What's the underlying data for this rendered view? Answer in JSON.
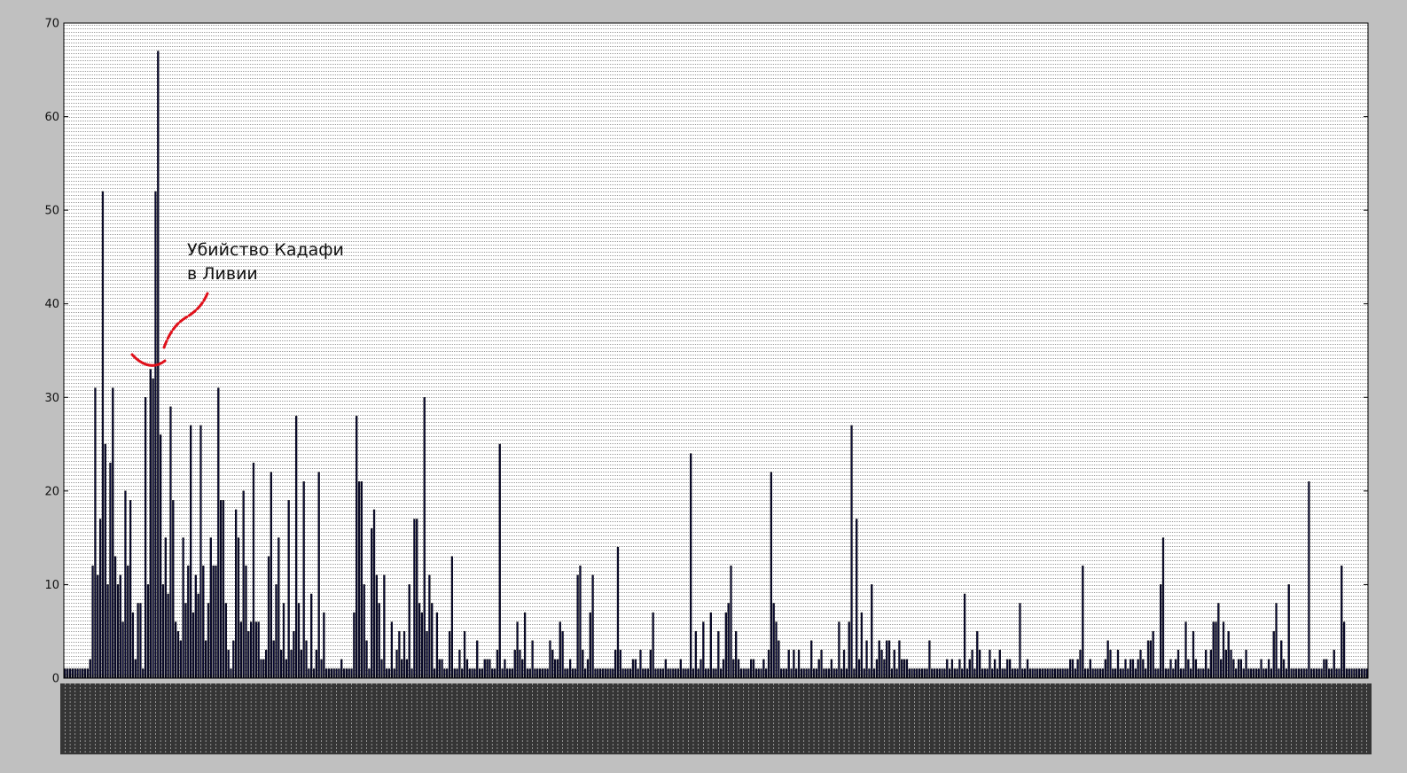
{
  "chart_data": {
    "type": "bar",
    "title": "",
    "xlabel": "",
    "ylabel": "",
    "ylim": [
      0,
      70
    ],
    "y_ticks": [
      "0",
      "10",
      "20",
      "30",
      "40",
      "50",
      "60",
      "70"
    ],
    "grid": true,
    "bar_color": "#0a0a3a",
    "background": "#c0c0c0",
    "plot_background": "#ffffff",
    "annotation": {
      "lines": [
        "Убийство Кадафи",
        "в Ливии"
      ],
      "marker_color": "#e0101a"
    },
    "values": [
      1,
      1,
      1,
      1,
      1,
      1,
      1,
      1,
      1,
      1,
      2,
      12,
      31,
      11,
      17,
      52,
      25,
      10,
      23,
      31,
      13,
      10,
      11,
      6,
      20,
      12,
      19,
      7,
      2,
      8,
      8,
      1,
      30,
      10,
      33,
      32,
      52,
      67,
      26,
      10,
      15,
      9,
      29,
      19,
      6,
      5,
      4,
      15,
      8,
      12,
      27,
      7,
      11,
      9,
      27,
      12,
      4,
      8,
      15,
      12,
      12,
      31,
      19,
      19,
      8,
      3,
      1,
      4,
      18,
      15,
      6,
      20,
      12,
      5,
      6,
      23,
      6,
      6,
      2,
      2,
      3,
      13,
      22,
      4,
      10,
      15,
      3,
      8,
      2,
      19,
      3,
      5,
      28,
      8,
      3,
      21,
      4,
      1,
      9,
      1,
      3,
      22,
      2,
      7,
      1,
      1,
      1,
      1,
      1,
      1,
      2,
      1,
      1,
      1,
      1,
      7,
      28,
      21,
      21,
      10,
      4,
      1,
      16,
      18,
      11,
      8,
      2,
      11,
      1,
      1,
      6,
      1,
      3,
      5,
      2,
      5,
      2,
      10,
      1,
      17,
      17,
      8,
      7,
      30,
      5,
      11,
      8,
      1,
      7,
      2,
      2,
      1,
      1,
      5,
      13,
      1,
      1,
      3,
      1,
      5,
      2,
      1,
      1,
      1,
      4,
      1,
      1,
      2,
      2,
      2,
      1,
      1,
      3,
      25,
      1,
      2,
      1,
      1,
      1,
      3,
      6,
      3,
      2,
      7,
      1,
      1,
      4,
      1,
      1,
      1,
      1,
      1,
      1,
      4,
      3,
      2,
      2,
      6,
      5,
      1,
      1,
      2,
      1,
      1,
      11,
      12,
      3,
      1,
      2,
      7,
      11,
      1,
      1,
      1,
      1,
      1,
      1,
      1,
      1,
      3,
      14,
      3,
      1,
      1,
      1,
      1,
      2,
      2,
      1,
      3,
      1,
      1,
      1,
      3,
      7,
      1,
      1,
      1,
      1,
      2,
      1,
      1,
      1,
      1,
      1,
      2,
      1,
      1,
      1,
      24,
      1,
      5,
      1,
      2,
      6,
      1,
      1,
      7,
      1,
      1,
      5,
      1,
      2,
      7,
      8,
      12,
      2,
      5,
      2,
      1,
      1,
      1,
      1,
      2,
      2,
      1,
      1,
      1,
      2,
      1,
      3,
      22,
      8,
      6,
      4,
      1,
      1,
      1,
      3,
      1,
      3,
      1,
      3,
      1,
      1,
      1,
      1,
      4,
      1,
      1,
      2,
      3,
      1,
      1,
      1,
      2,
      1,
      1,
      6,
      1,
      3,
      1,
      6,
      27,
      1,
      17,
      2,
      7,
      1,
      4,
      1,
      10,
      1,
      2,
      4,
      3,
      2,
      4,
      4,
      1,
      3,
      1,
      4,
      2,
      2,
      2,
      1,
      1,
      1,
      1,
      1,
      1,
      1,
      1,
      4,
      1,
      1,
      1,
      1,
      1,
      1,
      2,
      1,
      2,
      1,
      1,
      2,
      1,
      9,
      1,
      2,
      3,
      1,
      5,
      3,
      1,
      1,
      1,
      3,
      1,
      2,
      1,
      3,
      1,
      1,
      2,
      2,
      1,
      1,
      1,
      8,
      1,
      1,
      2,
      1,
      1,
      1,
      1,
      1,
      1,
      1,
      1,
      1,
      1,
      1,
      1,
      1,
      1,
      1,
      1,
      2,
      2,
      1,
      2,
      3,
      12,
      1,
      1,
      2,
      1,
      1,
      1,
      1,
      1,
      2,
      4,
      3,
      1,
      1,
      3,
      1,
      1,
      2,
      1,
      2,
      2,
      1,
      2,
      3,
      2,
      1,
      4,
      4,
      5,
      1,
      1,
      10,
      15,
      1,
      1,
      2,
      1,
      2,
      3,
      1,
      1,
      6,
      2,
      1,
      5,
      2,
      1,
      1,
      1,
      3,
      1,
      3,
      6,
      6,
      8,
      2,
      6,
      3,
      5,
      3,
      2,
      1,
      2,
      2,
      1,
      3,
      1,
      1,
      1,
      1,
      1,
      2,
      1,
      1,
      2,
      1,
      5,
      8,
      1,
      4,
      2,
      1,
      10,
      1,
      1,
      1,
      1,
      1,
      1,
      1,
      21,
      1,
      1,
      1,
      1,
      1,
      2,
      2,
      1,
      1,
      3,
      1,
      1,
      12,
      6,
      1,
      1,
      1,
      1,
      1,
      1,
      1,
      1,
      1
    ]
  }
}
